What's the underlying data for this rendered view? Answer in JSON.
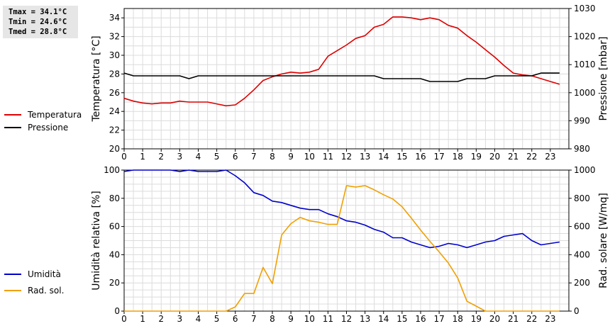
{
  "stats": {
    "tmax": "Tmax = 34.1°C",
    "tmin": "Tmin = 24.6°C",
    "tmed": "Tmed = 28.8°C"
  },
  "chart_data": [
    {
      "type": "line",
      "xlabel": "",
      "xlim": [
        0,
        24
      ],
      "x_ticks": [
        "0",
        "1",
        "2",
        "3",
        "4",
        "5",
        "6",
        "7",
        "8",
        "9",
        "10",
        "11",
        "12",
        "13",
        "14",
        "15",
        "16",
        "17",
        "18",
        "19",
        "20",
        "21",
        "22",
        "23"
      ],
      "ylabel_left": "Temperatura [°C]",
      "ylim_left": [
        20,
        35
      ],
      "yticks_left": [
        20,
        22,
        24,
        26,
        28,
        30,
        32,
        34
      ],
      "ylabel_right": "Pressione [mbar]",
      "ylim_right": [
        980,
        1030
      ],
      "yticks_right": [
        980,
        990,
        1000,
        1010,
        1020,
        1030
      ],
      "grid": true,
      "legend_position": "left",
      "series": [
        {
          "name": "Temperatura",
          "axis": "left",
          "color": "#dd0000",
          "x": [
            0,
            0.5,
            1,
            1.5,
            2,
            2.5,
            3,
            3.5,
            4,
            4.5,
            5,
            5.5,
            6,
            6.5,
            7,
            7.5,
            8,
            8.5,
            9,
            9.5,
            10,
            10.5,
            11,
            11.5,
            12,
            12.5,
            13,
            13.5,
            14,
            14.5,
            15,
            15.5,
            16,
            16.5,
            17,
            17.5,
            18,
            18.5,
            19,
            19.5,
            20,
            20.5,
            21,
            21.5,
            22,
            22.5,
            23,
            23.5
          ],
          "values": [
            25.4,
            25.1,
            24.9,
            24.8,
            24.9,
            24.9,
            25.1,
            25.0,
            25.0,
            25.0,
            24.8,
            24.6,
            24.7,
            25.4,
            26.3,
            27.3,
            27.7,
            28.0,
            28.2,
            28.1,
            28.2,
            28.5,
            29.9,
            30.5,
            31.1,
            31.8,
            32.1,
            33.0,
            33.3,
            34.1,
            34.1,
            34.0,
            33.8,
            34.0,
            33.8,
            33.2,
            32.9,
            32.1,
            31.4,
            30.6,
            29.8,
            28.9,
            28.1,
            27.9,
            27.8,
            27.5,
            27.2,
            26.9
          ]
        },
        {
          "name": "Pressione",
          "axis": "right",
          "color": "#000000",
          "x": [
            0,
            0.5,
            1,
            1.5,
            2,
            2.5,
            3,
            3.5,
            4,
            4.5,
            5,
            5.5,
            6,
            6.5,
            7,
            7.5,
            8,
            8.5,
            9,
            9.5,
            10,
            10.5,
            11,
            11.5,
            12,
            12.5,
            13,
            13.5,
            14,
            14.5,
            15,
            15.5,
            16,
            16.5,
            17,
            17.5,
            18,
            18.5,
            19,
            19.5,
            20,
            20.5,
            21,
            21.5,
            22,
            22.5,
            23,
            23.5
          ],
          "values": [
            1007,
            1006,
            1006,
            1006,
            1006,
            1006,
            1006,
            1005,
            1006,
            1006,
            1006,
            1006,
            1006,
            1006,
            1006,
            1006,
            1006,
            1006,
            1006,
            1006,
            1006,
            1006,
            1006,
            1006,
            1006,
            1006,
            1006,
            1006,
            1005,
            1005,
            1005,
            1005,
            1005,
            1004,
            1004,
            1004,
            1004,
            1005,
            1005,
            1005,
            1006,
            1006,
            1006,
            1006,
            1006,
            1007,
            1007,
            1007
          ]
        }
      ]
    },
    {
      "type": "line",
      "xlabel": "",
      "xlim": [
        0,
        24
      ],
      "x_ticks": [
        "0",
        "1",
        "2",
        "3",
        "4",
        "5",
        "6",
        "7",
        "8",
        "9",
        "10",
        "11",
        "12",
        "13",
        "14",
        "15",
        "16",
        "17",
        "18",
        "19",
        "20",
        "21",
        "22",
        "23"
      ],
      "ylabel_left": "Umidità relativa [%]",
      "ylim_left": [
        0,
        100
      ],
      "yticks_left": [
        0,
        20,
        40,
        60,
        80,
        100
      ],
      "ylabel_right": "Rad. solare [W/mq]",
      "ylim_right": [
        0,
        1000
      ],
      "yticks_right": [
        0,
        200,
        400,
        600,
        800,
        1000
      ],
      "grid": true,
      "legend_position": "left",
      "series": [
        {
          "name": "Umidità",
          "axis": "left",
          "color": "#0000cc",
          "x": [
            0,
            0.5,
            1,
            1.5,
            2,
            2.5,
            3,
            3.5,
            4,
            4.5,
            5,
            5.5,
            6,
            6.5,
            7,
            7.5,
            8,
            8.5,
            9,
            9.5,
            10,
            10.5,
            11,
            11.5,
            12,
            12.5,
            13,
            13.5,
            14,
            14.5,
            15,
            15.5,
            16,
            16.5,
            17,
            17.5,
            18,
            18.5,
            19,
            19.5,
            20,
            20.5,
            21,
            21.5,
            22,
            22.5,
            23,
            23.5
          ],
          "values": [
            99,
            100,
            100,
            100,
            100,
            100,
            99,
            100,
            99,
            99,
            99,
            100,
            96,
            91,
            84,
            82,
            78,
            77,
            75,
            73,
            72,
            72,
            69,
            67,
            64,
            63,
            61,
            58,
            56,
            52,
            52,
            49,
            47,
            45,
            46,
            48,
            47,
            45,
            47,
            49,
            50,
            53,
            54,
            55,
            50,
            47,
            48,
            49
          ]
        },
        {
          "name": "Rad. sol.",
          "axis": "right",
          "color": "#f0a000",
          "x": [
            0,
            0.5,
            1,
            1.5,
            2,
            2.5,
            3,
            3.5,
            4,
            4.5,
            5,
            5.5,
            6,
            6.5,
            7,
            7.5,
            8,
            8.5,
            9,
            9.5,
            10,
            10.5,
            11,
            11.5,
            12,
            12.5,
            13,
            13.5,
            14,
            14.5,
            15,
            15.5,
            16,
            16.5,
            17,
            17.5,
            18,
            18.5,
            19,
            19.5,
            20,
            20.5,
            21,
            21.5,
            22,
            22.5,
            23,
            23.5
          ],
          "values": [
            0,
            0,
            0,
            0,
            0,
            0,
            0,
            0,
            0,
            0,
            0,
            0,
            30,
            125,
            125,
            310,
            195,
            540,
            620,
            665,
            640,
            630,
            615,
            615,
            890,
            880,
            890,
            860,
            825,
            795,
            740,
            660,
            575,
            495,
            420,
            340,
            235,
            70,
            35,
            0,
            0,
            0,
            0,
            0,
            0,
            0,
            0,
            0
          ]
        }
      ]
    }
  ]
}
